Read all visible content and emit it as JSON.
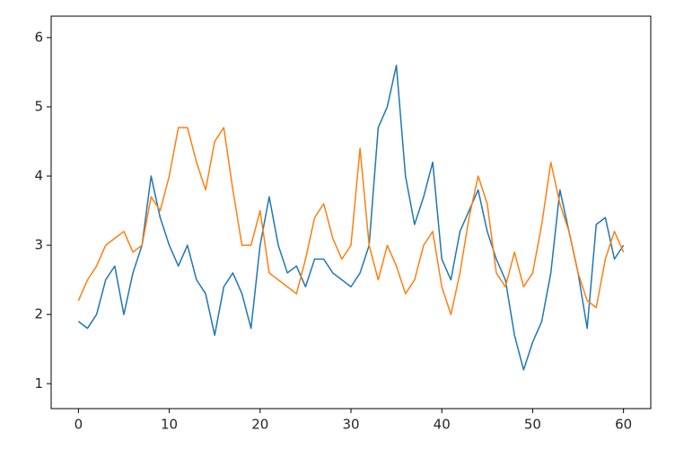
{
  "chart_data": {
    "type": "line",
    "x": [
      0,
      1,
      2,
      3,
      4,
      5,
      6,
      7,
      8,
      9,
      10,
      11,
      12,
      13,
      14,
      15,
      16,
      17,
      18,
      19,
      20,
      21,
      22,
      23,
      24,
      25,
      26,
      27,
      28,
      29,
      30,
      31,
      32,
      33,
      34,
      35,
      36,
      37,
      38,
      39,
      40,
      41,
      42,
      43,
      44,
      45,
      46,
      47,
      48,
      49,
      50,
      51,
      52,
      53,
      54,
      55,
      56,
      57,
      58,
      59,
      60
    ],
    "series": [
      {
        "color": "#1f77b4",
        "values": [
          1.9,
          1.8,
          2.0,
          2.5,
          2.7,
          2.0,
          2.6,
          3.0,
          4.0,
          3.4,
          3.0,
          2.7,
          3.0,
          2.5,
          2.3,
          1.7,
          2.4,
          2.6,
          2.3,
          1.8,
          3.0,
          3.7,
          3.0,
          2.6,
          2.7,
          2.4,
          2.8,
          2.8,
          2.6,
          2.5,
          2.4,
          2.6,
          3.0,
          4.7,
          5.0,
          5.6,
          4.0,
          3.3,
          3.7,
          4.2,
          2.8,
          2.5,
          3.2,
          3.5,
          3.8,
          3.2,
          2.8,
          2.5,
          1.7,
          1.2,
          1.6,
          1.9,
          2.6,
          3.8,
          3.2,
          2.6,
          1.8,
          3.3,
          3.4,
          2.8,
          3.0
        ]
      },
      {
        "color": "#ff7f0e",
        "values": [
          2.2,
          2.5,
          2.7,
          3.0,
          3.1,
          3.2,
          2.9,
          3.0,
          3.7,
          3.5,
          4.0,
          4.7,
          4.7,
          4.2,
          3.8,
          4.5,
          4.7,
          3.8,
          3.0,
          3.0,
          3.5,
          2.6,
          2.5,
          2.4,
          2.3,
          2.8,
          3.4,
          3.6,
          3.1,
          2.8,
          3.0,
          4.4,
          3.0,
          2.5,
          3.0,
          2.7,
          2.3,
          2.5,
          3.0,
          3.2,
          2.4,
          2.0,
          2.6,
          3.4,
          4.0,
          3.6,
          2.6,
          2.4,
          2.9,
          2.4,
          2.6,
          3.3,
          4.2,
          3.6,
          3.2,
          2.6,
          2.2,
          2.1,
          2.8,
          3.2,
          2.9
        ]
      }
    ],
    "xlim": [
      -3,
      63
    ],
    "ylim": [
      0.64,
      6.31
    ],
    "xticks": [
      0,
      10,
      20,
      30,
      40,
      50,
      60
    ],
    "yticks": [
      1,
      2,
      3,
      4,
      5,
      6
    ]
  }
}
